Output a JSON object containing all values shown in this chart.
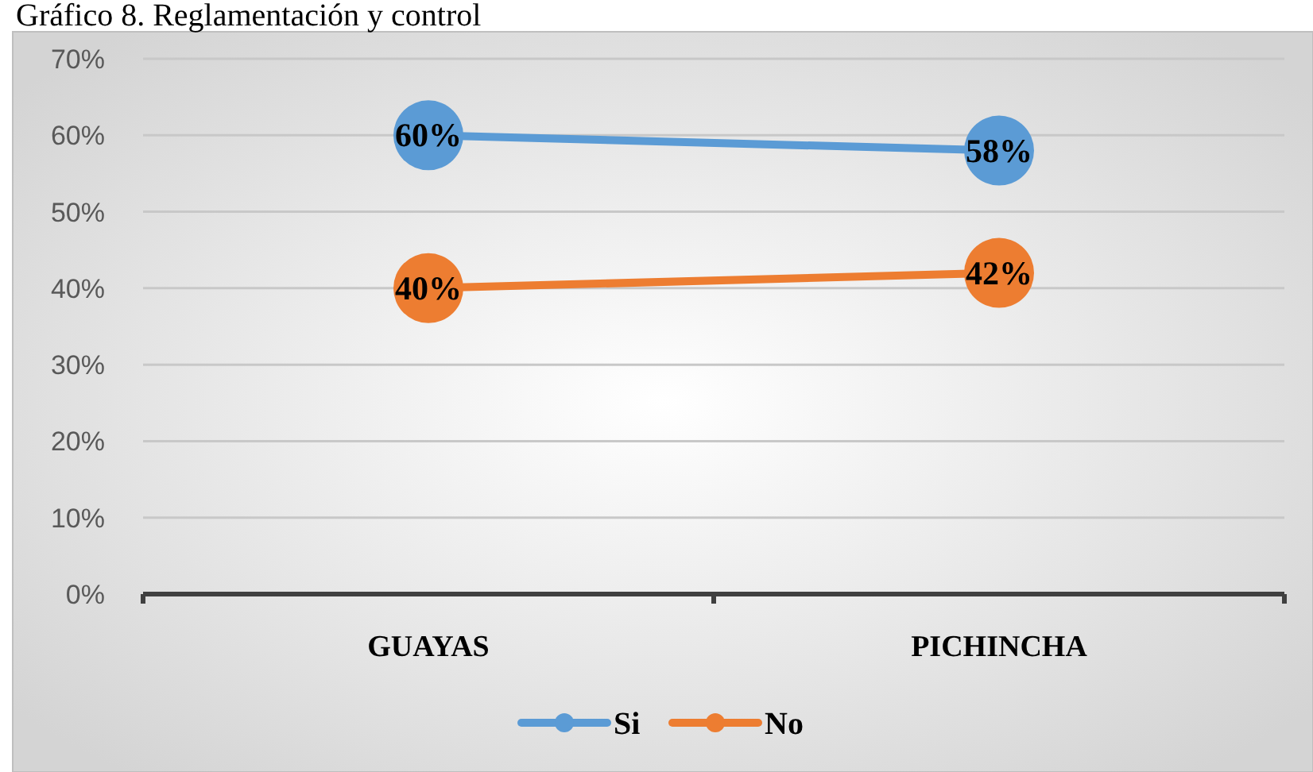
{
  "chart_data": {
    "type": "line",
    "title": "Gráfico 8. Reglamentación y control",
    "categories": [
      "GUAYAS",
      "PICHINCHA"
    ],
    "series": [
      {
        "name": "Si",
        "color": "#5b9bd5",
        "values": [
          60,
          58
        ],
        "value_labels": [
          "60%",
          "58%"
        ]
      },
      {
        "name": "No",
        "color": "#ed7d31",
        "values": [
          40,
          42
        ],
        "value_labels": [
          "40%",
          "42%"
        ]
      }
    ],
    "ylim": [
      0,
      70
    ],
    "yticks": [
      {
        "value": 0,
        "label": "0%"
      },
      {
        "value": 10,
        "label": "10%"
      },
      {
        "value": 20,
        "label": "20%"
      },
      {
        "value": 30,
        "label": "30%"
      },
      {
        "value": 40,
        "label": "40%"
      },
      {
        "value": 50,
        "label": "50%"
      },
      {
        "value": 60,
        "label": "60%"
      },
      {
        "value": 70,
        "label": "70%"
      }
    ],
    "grid": "y",
    "legend": "bottom",
    "marker": "circle",
    "line_style": "solid"
  }
}
